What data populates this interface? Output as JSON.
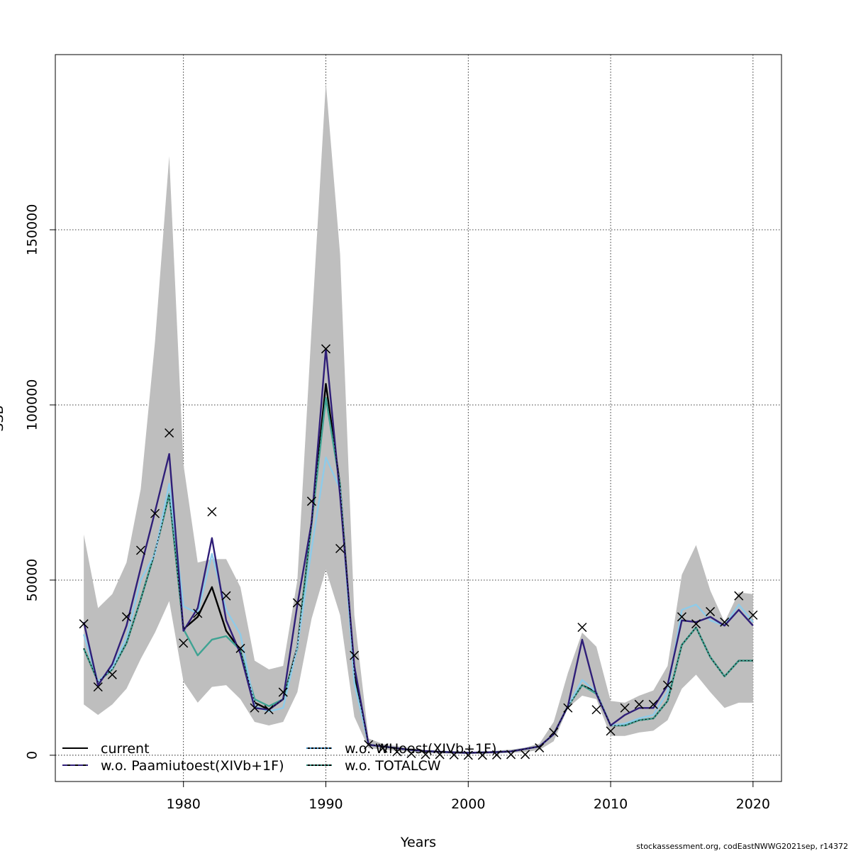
{
  "chart_data": {
    "type": "line",
    "xlabel": "Years",
    "ylabel": "SSB",
    "xlim": [
      1971.0,
      2022.0
    ],
    "ylim": [
      -7500,
      200000
    ],
    "x_ticks": [
      1980,
      1990,
      2000,
      2010,
      2020
    ],
    "x_tick_labels": [
      "1980",
      "1990",
      "2000",
      "2010",
      "2020"
    ],
    "y_ticks": [
      0,
      50000,
      100000,
      150000
    ],
    "y_tick_labels": [
      "0",
      "50000",
      "100000",
      "150000"
    ],
    "grid": true,
    "legend_position": "bottom-left",
    "credit": "stockassessment.org, codEastNWWG2021sep, r14372",
    "x": [
      1973,
      1974,
      1975,
      1976,
      1977,
      1978,
      1979,
      1980,
      1981,
      1982,
      1983,
      1984,
      1985,
      1986,
      1987,
      1988,
      1989,
      1990,
      1991,
      1992,
      1993,
      1994,
      1995,
      1996,
      1997,
      1998,
      1999,
      2000,
      2001,
      2002,
      2003,
      2004,
      2005,
      2006,
      2007,
      2008,
      2009,
      2010,
      2011,
      2012,
      2013,
      2014,
      2015,
      2016,
      2017,
      2018,
      2019,
      2020
    ],
    "confidence_band": {
      "color": "#bebebe",
      "upper": [
        63000,
        42000,
        46000,
        55000,
        76000,
        118000,
        171000,
        83000,
        55000,
        56000,
        56000,
        48000,
        27000,
        24500,
        25500,
        50000,
        122000,
        192000,
        143000,
        40000,
        4800,
        3200,
        2600,
        2000,
        1500,
        1300,
        1200,
        1000,
        1000,
        1300,
        1600,
        2200,
        3300,
        9500,
        23500,
        35000,
        31000,
        15500,
        15000,
        17000,
        18500,
        25500,
        51500,
        60000,
        47000,
        38000,
        46500,
        46000
      ],
      "lower": [
        14500,
        11500,
        14500,
        19000,
        27500,
        35000,
        44000,
        21000,
        15000,
        19500,
        20000,
        16000,
        9500,
        8500,
        9500,
        18000,
        39000,
        53000,
        40000,
        11000,
        2000,
        1700,
        1200,
        1000,
        600,
        500,
        400,
        400,
        400,
        500,
        700,
        900,
        1500,
        4000,
        13500,
        17000,
        16000,
        5500,
        5500,
        6500,
        7000,
        10000,
        19000,
        23000,
        18000,
        13500,
        15000,
        15000
      ]
    },
    "series": [
      {
        "name": "current",
        "color": "#000000",
        "dash": "solid",
        "values": [
          30500,
          21000,
          24500,
          32000,
          44500,
          58000,
          74500,
          36000,
          39500,
          48000,
          35500,
          30000,
          15000,
          13000,
          16000,
          31000,
          66500,
          106000,
          77000,
          23000,
          3000,
          2500,
          2000,
          1500,
          1200,
          1000,
          800,
          700,
          800,
          900,
          1100,
          1800,
          2500,
          6000,
          14000,
          20000,
          18000,
          8500,
          8500,
          10000,
          10500,
          15500,
          31500,
          36500,
          28000,
          22500,
          27000,
          27000
        ]
      },
      {
        "name": "w.o. Paamiutoest(XIVb+1F)",
        "color": "#2f1e78",
        "dash": "solid",
        "values": [
          38000,
          20000,
          26000,
          37000,
          53500,
          69500,
          86000,
          35500,
          42000,
          62000,
          38500,
          29000,
          13500,
          13000,
          16000,
          43000,
          66500,
          116000,
          74000,
          25500,
          3000,
          2500,
          2000,
          1500,
          1200,
          1000,
          800,
          700,
          800,
          900,
          1100,
          1800,
          2500,
          6000,
          14000,
          33000,
          17500,
          8500,
          11500,
          13500,
          13500,
          20000,
          38500,
          38000,
          39500,
          37000,
          41500,
          37000
        ]
      },
      {
        "name": "w.o. WHoest(XIVb+1F)",
        "color": "#8ecbe9",
        "dash": "solid",
        "values": [
          34500,
          21000,
          25000,
          33500,
          50000,
          57500,
          77500,
          42500,
          40500,
          57500,
          41500,
          34500,
          14000,
          12500,
          13500,
          31000,
          59000,
          85000,
          76000,
          20500,
          3000,
          2500,
          2000,
          1500,
          1200,
          1000,
          800,
          700,
          800,
          900,
          1100,
          1800,
          2500,
          6000,
          14000,
          21500,
          18000,
          8500,
          9000,
          10500,
          11500,
          18000,
          41500,
          43000,
          38500,
          37000,
          43000,
          38000
        ]
      },
      {
        "name": "w.o. TOTALCW",
        "color": "#3fa393",
        "dash": "solid",
        "values": [
          30500,
          21000,
          24500,
          32000,
          44500,
          58000,
          74500,
          36000,
          28500,
          33000,
          34000,
          30000,
          16000,
          14000,
          16000,
          30500,
          66000,
          102000,
          77000,
          21000,
          3000,
          2500,
          2000,
          1500,
          1200,
          1000,
          800,
          700,
          800,
          900,
          1100,
          1800,
          2500,
          6000,
          14000,
          20000,
          17500,
          8500,
          8500,
          10000,
          10500,
          15500,
          31500,
          36500,
          28000,
          22500,
          27000,
          27000
        ]
      }
    ],
    "observations": {
      "marker": "x",
      "values": [
        37500,
        19500,
        23000,
        39500,
        58500,
        69000,
        92000,
        32000,
        40500,
        69500,
        45500,
        30500,
        13500,
        13000,
        18000,
        43500,
        72500,
        116000,
        59000,
        28500,
        3000,
        2000,
        1000,
        500,
        200,
        200,
        100,
        0,
        0,
        100,
        200,
        200,
        2100,
        6500,
        13500,
        36500,
        13000,
        6900,
        13500,
        14500,
        14500,
        20000,
        39500,
        37500,
        41000,
        38000,
        45500,
        40000
      ]
    },
    "legend": [
      {
        "label": "current",
        "color": "#000000",
        "style": "solid"
      },
      {
        "label": "w.o. Paamiutoest(XIVb+1F)",
        "color": "#2f1e78",
        "style": "dashed"
      },
      {
        "label": "w.o. WHoest(XIVb+1F)",
        "color": "#3b8fc9",
        "style": "dotted"
      },
      {
        "label": "w.o. TOTALCW",
        "color": "#2a8a78",
        "style": "dotted"
      }
    ]
  }
}
